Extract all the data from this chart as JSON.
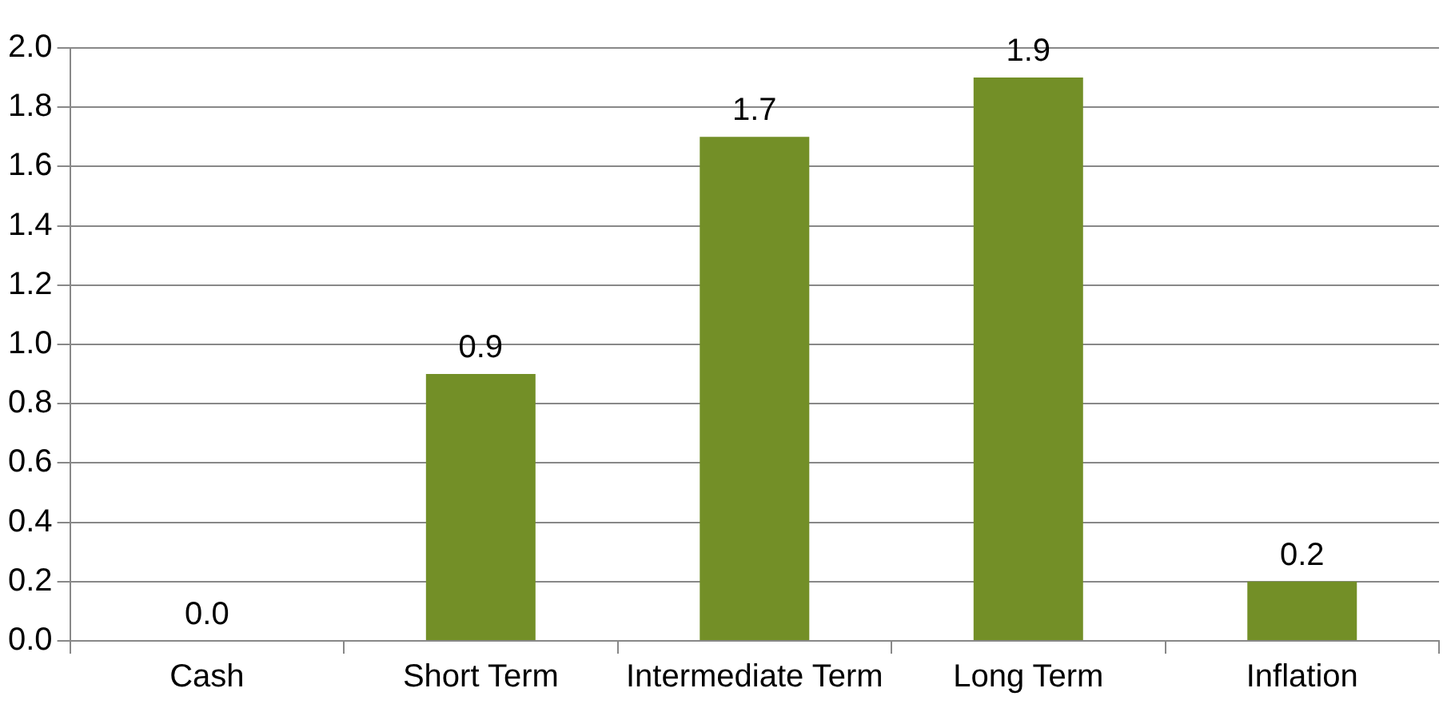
{
  "chart_data": {
    "type": "bar",
    "categories": [
      "Cash",
      "Short Term",
      "Intermediate Term",
      "Long Term",
      "Inflation"
    ],
    "values": [
      0.0,
      0.9,
      1.7,
      1.9,
      0.2
    ],
    "value_labels": [
      "0.0",
      "0.9",
      "1.7",
      "1.9",
      "0.2"
    ],
    "color": "#738f27",
    "ylim": [
      0,
      2.0
    ],
    "yticks": [
      {
        "value": 0,
        "label": "0.0"
      },
      0.2,
      0.4,
      0.6,
      0.8,
      {
        "value": 1.0,
        "label": "1.0"
      },
      1.2,
      1.4,
      1.6,
      1.8,
      {
        "value": 2.0,
        "label": "2.0"
      }
    ],
    "grid": "y",
    "legend": false
  }
}
